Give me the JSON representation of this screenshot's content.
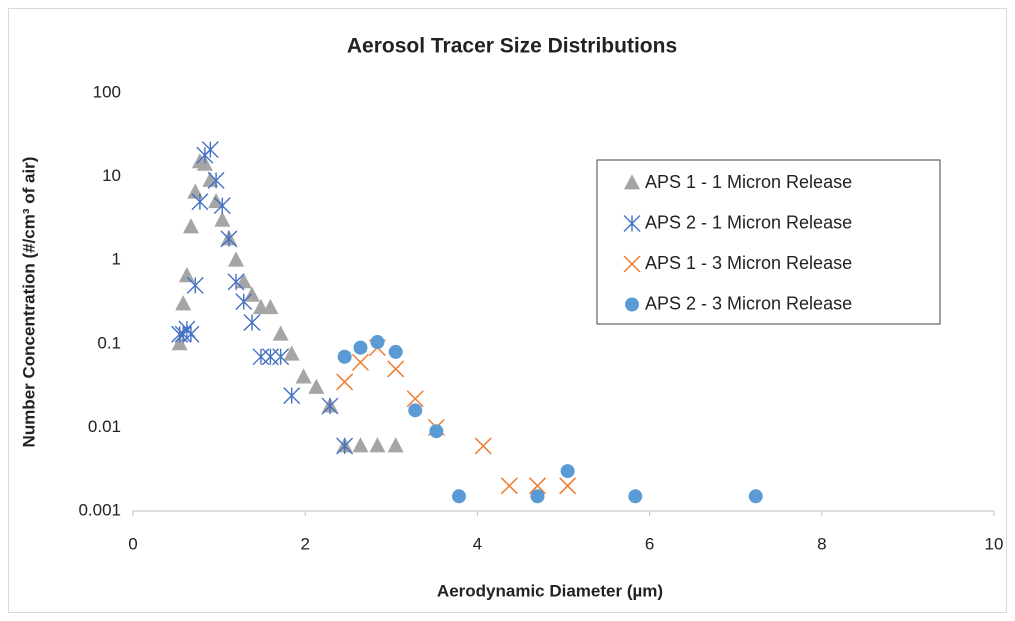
{
  "chart_data": {
    "type": "scatter",
    "title": "Aerosol Tracer Size Distributions",
    "x_label": "Aerodynamic Diameter (µm)",
    "y_label": "Number Concentration (#/cm³ of air)",
    "xlim": [
      0,
      10
    ],
    "xticks": [
      0,
      2,
      4,
      6,
      8,
      10
    ],
    "ylim": [
      0.001,
      100
    ],
    "yticks": [
      0.001,
      0.01,
      0.1,
      1,
      10,
      100
    ],
    "log_y": true,
    "grid": false,
    "legend": "upper right",
    "series": [
      {
        "name": "APS 1 - 1 Micron Release",
        "color": "#a5a5a5",
        "marker": "triangle",
        "x": [
          0.542,
          0.583,
          0.626,
          0.673,
          0.723,
          0.777,
          0.835,
          0.898,
          0.965,
          1.037,
          1.114,
          1.197,
          1.286,
          1.382,
          1.486,
          1.596,
          1.715,
          1.843,
          1.981,
          2.129,
          2.288,
          2.458,
          2.642,
          2.839,
          3.051
        ],
        "values": [
          0.1,
          0.3,
          0.65,
          2.5,
          6.5,
          15,
          14,
          9,
          5,
          3,
          1.8,
          1.0,
          0.55,
          0.38,
          0.27,
          0.27,
          0.13,
          0.075,
          0.04,
          0.03,
          0.018,
          0.006,
          0.006,
          0.006,
          0.006
        ]
      },
      {
        "name": "APS 2 - 1 Micron Release",
        "color": "#4472c4",
        "marker": "asterisk",
        "x": [
          0.542,
          0.583,
          0.626,
          0.673,
          0.723,
          0.777,
          0.835,
          0.898,
          0.965,
          1.037,
          1.114,
          1.197,
          1.286,
          1.382,
          1.486,
          1.596,
          1.715,
          1.843,
          2.288,
          2.458
        ],
        "values": [
          0.13,
          0.13,
          0.15,
          0.13,
          0.5,
          5,
          18,
          21,
          9,
          4.5,
          1.8,
          0.55,
          0.32,
          0.18,
          0.07,
          0.07,
          0.07,
          0.024,
          0.018,
          0.006
        ]
      },
      {
        "name": "APS 1 - 3 Micron Release",
        "color": "#ed7d31",
        "marker": "x",
        "x": [
          2.458,
          2.642,
          2.839,
          3.051,
          3.278,
          3.523,
          4.068,
          4.371,
          4.698,
          5.048
        ],
        "values": [
          0.035,
          0.06,
          0.09,
          0.05,
          0.022,
          0.01,
          0.006,
          0.002,
          0.002,
          0.002
        ]
      },
      {
        "name": "APS 2 - 3 Micron Release",
        "color": "#5b9bd5",
        "marker": "circle",
        "x": [
          2.458,
          2.642,
          2.839,
          3.051,
          3.278,
          3.523,
          3.786,
          4.698,
          5.048,
          5.834,
          7.233
        ],
        "values": [
          0.07,
          0.09,
          0.105,
          0.08,
          0.016,
          0.009,
          0.0015,
          0.0015,
          0.003,
          0.0015,
          0.0015
        ]
      }
    ]
  }
}
